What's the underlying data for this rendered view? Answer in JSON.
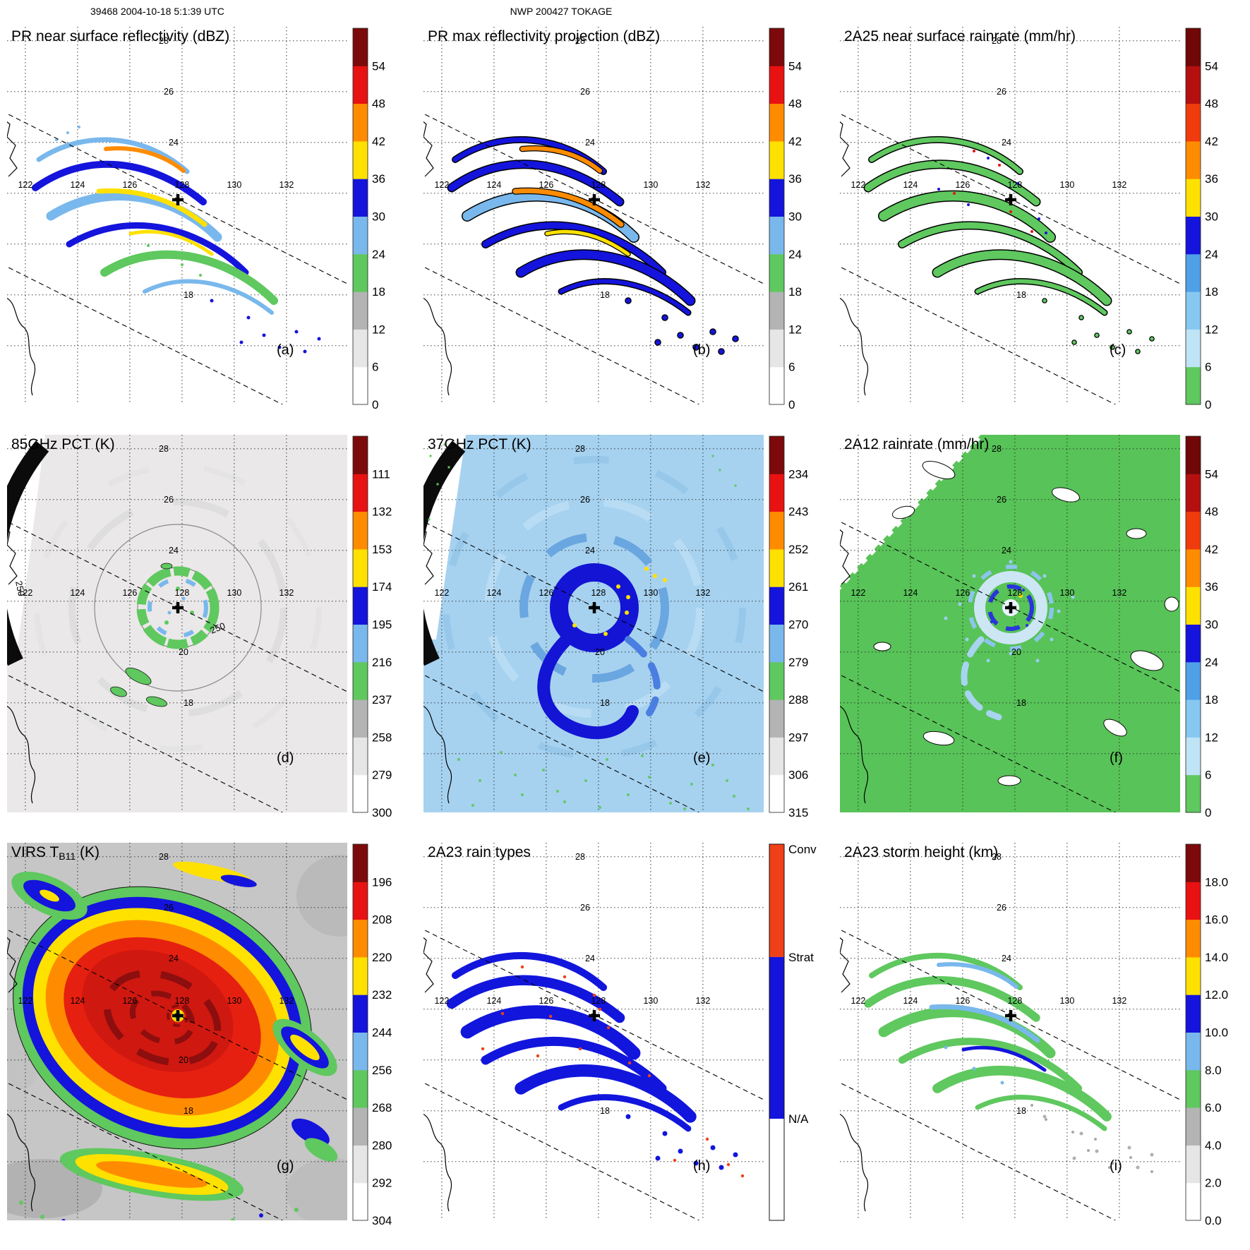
{
  "header": {
    "left": "39468 2004-10-18 5:1:39 UTC",
    "center": "NWP 200427 TOKAGE"
  },
  "axes": {
    "lon_labels": [
      "122",
      "124",
      "126",
      "128",
      "130",
      "132"
    ],
    "lon_values": [
      122,
      124,
      126,
      128,
      130,
      132
    ],
    "lat_labels": [
      "28",
      "26",
      "24",
      "20",
      "18"
    ],
    "lat_values": [
      28,
      26,
      24,
      20,
      18
    ],
    "lat_gridlines": [
      28,
      26,
      24,
      22,
      20,
      18,
      16
    ]
  },
  "annotations": {
    "contour_label": "250"
  },
  "palette": {
    "white": "#ffffff",
    "light_gray": "#e6e6e6",
    "gray": "#b4b4b4",
    "green": "#5fc85f",
    "light_blue": "#79b8ec",
    "pale_blue": "#bfe4f6",
    "mid_blue": "#86c8f0",
    "steel_blue": "#50a0e8",
    "blue": "#1414dc",
    "yellow": "#ffe100",
    "orange": "#ff8c00",
    "red_orange": "#f03c0c",
    "red": "#e81212",
    "dark_red": "#7c0a0a",
    "conv_red": "#f04018",
    "strat_blue": "#1414dc",
    "band_85ghz": "#eae8e8",
    "band_37ghz": "#a6d2f0",
    "band_2a12": "#58c358",
    "band_virs": "#c6c6c6",
    "coast": "#000000"
  },
  "panels": [
    {
      "id": "a",
      "letter": "(a)",
      "title": "PR near surface reflectivity (dBZ)",
      "art": "pr_sfc",
      "colorbar": {
        "ticks": [
          "0",
          "6",
          "12",
          "18",
          "24",
          "30",
          "36",
          "42",
          "48",
          "54"
        ],
        "colors": [
          "#ffffff",
          "#e6e6e6",
          "#b4b4b4",
          "#5fc85f",
          "#79b8ec",
          "#1414dc",
          "#ffe100",
          "#ff8c00",
          "#e81212",
          "#7c0a0a"
        ]
      }
    },
    {
      "id": "b",
      "letter": "(b)",
      "title": "PR max reflectivity projection (dBZ)",
      "art": "pr_max",
      "colorbar": {
        "ticks": [
          "0",
          "6",
          "12",
          "18",
          "24",
          "30",
          "36",
          "42",
          "48",
          "54"
        ],
        "colors": [
          "#ffffff",
          "#e6e6e6",
          "#b4b4b4",
          "#5fc85f",
          "#79b8ec",
          "#1414dc",
          "#ffe100",
          "#ff8c00",
          "#e81212",
          "#7c0a0a"
        ]
      }
    },
    {
      "id": "c",
      "letter": "(c)",
      "title": "2A25 near surface rainrate (mm/hr)",
      "art": "rr_2a25",
      "colorbar": {
        "ticks": [
          "0",
          "6",
          "12",
          "18",
          "24",
          "30",
          "36",
          "42",
          "48",
          "54"
        ],
        "colors": [
          "#5fc85f",
          "#bfe4f6",
          "#86c8f0",
          "#50a0e8",
          "#1414dc",
          "#ffe100",
          "#ff8c00",
          "#f03c0c",
          "#b41010",
          "#700808"
        ]
      }
    },
    {
      "id": "d",
      "letter": "(d)",
      "title": "85GHz PCT (K)",
      "art": "pct85",
      "colorbar": {
        "ticks": [
          "300",
          "279",
          "258",
          "237",
          "216",
          "195",
          "174",
          "153",
          "132",
          "111"
        ],
        "colors": [
          "#ffffff",
          "#e6e6e6",
          "#b4b4b4",
          "#5fc85f",
          "#79b8ec",
          "#1414dc",
          "#ffe100",
          "#ff8c00",
          "#e81212",
          "#7c0a0a"
        ]
      }
    },
    {
      "id": "e",
      "letter": "(e)",
      "title": "37GHz PCT (K)",
      "art": "pct37",
      "colorbar": {
        "ticks": [
          "315",
          "306",
          "297",
          "288",
          "279",
          "270",
          "261",
          "252",
          "243",
          "234"
        ],
        "colors": [
          "#ffffff",
          "#e6e6e6",
          "#b4b4b4",
          "#5fc85f",
          "#79b8ec",
          "#1414dc",
          "#ffe100",
          "#ff8c00",
          "#e81212",
          "#7c0a0a"
        ]
      }
    },
    {
      "id": "f",
      "letter": "(f)",
      "title": "2A12 rainrate (mm/hr)",
      "art": "rr_2a12",
      "colorbar": {
        "ticks": [
          "0",
          "6",
          "12",
          "18",
          "24",
          "30",
          "36",
          "42",
          "48",
          "54"
        ],
        "colors": [
          "#5fc85f",
          "#bfe4f6",
          "#86c8f0",
          "#50a0e8",
          "#1414dc",
          "#ffe100",
          "#ff8c00",
          "#f03c0c",
          "#b41010",
          "#700808"
        ]
      }
    },
    {
      "id": "g",
      "letter": "(g)",
      "title": "VIRS TB11 (K)",
      "title_parts": {
        "pre": "VIRS T",
        "sub": "B11",
        "post": " (K)"
      },
      "art": "virs",
      "colorbar": {
        "ticks": [
          "304",
          "292",
          "280",
          "268",
          "256",
          "244",
          "232",
          "220",
          "208",
          "196"
        ],
        "colors": [
          "#ffffff",
          "#e6e6e6",
          "#b4b4b4",
          "#5fc85f",
          "#79b8ec",
          "#1414dc",
          "#ffe100",
          "#ff8c00",
          "#e81212",
          "#7c0a0a"
        ]
      }
    },
    {
      "id": "h",
      "letter": "(h)",
      "title": "2A23 rain types",
      "art": "raintype",
      "colorbar": {
        "type": "categorical",
        "labels": [
          "Conv",
          "Strat",
          "N/A"
        ],
        "colors": [
          "#f04018",
          "#1414dc",
          "#ffffff"
        ],
        "fractions": [
          0,
          0.3,
          0.73
        ]
      }
    },
    {
      "id": "i",
      "letter": "(i)",
      "title": "2A23 storm height (km)",
      "art": "stormht",
      "colorbar": {
        "ticks": [
          "0.0",
          "2.0",
          "4.0",
          "6.0",
          "8.0",
          "10.0",
          "12.0",
          "14.0",
          "16.0",
          "18.0"
        ],
        "colors": [
          "#ffffff",
          "#e6e6e6",
          "#b4b4b4",
          "#5fc85f",
          "#79b8ec",
          "#1414dc",
          "#ffe100",
          "#ff8c00",
          "#e81212",
          "#7c0a0a"
        ]
      }
    }
  ],
  "chart_data": [
    {
      "panel": "a",
      "type": "heatmap",
      "title": "PR near surface reflectivity",
      "units": "dBZ",
      "colorbar_ticks": [
        0,
        6,
        12,
        18,
        24,
        30,
        36,
        42,
        48,
        54
      ],
      "lon_ticks": [
        122,
        124,
        126,
        128,
        130,
        132
      ],
      "lat_ticks": [
        18,
        20,
        24,
        26,
        28
      ],
      "extent": {
        "lon": [
          121.3,
          134.3
        ],
        "lat": [
          13.7,
          28.5
        ]
      },
      "features": "Narrow TRMM PR swath running NW-SE; spiral rainbands northwest of the storm center, mostly 18-42 dBZ, scattered weak echoes southeast"
    },
    {
      "panel": "b",
      "type": "heatmap",
      "title": "PR max reflectivity projection",
      "units": "dBZ",
      "colorbar_ticks": [
        0,
        6,
        12,
        18,
        24,
        30,
        36,
        42,
        48,
        54
      ],
      "features": "Same swath as (a) with outlined cells; broader 30-45 dBZ cores along the rainbands"
    },
    {
      "panel": "c",
      "type": "heatmap",
      "title": "2A25 near surface rainrate",
      "units": "mm/hr",
      "colorbar_ticks": [
        0,
        6,
        12,
        18,
        24,
        30,
        36,
        42,
        48,
        54
      ],
      "features": "Mostly light rain (0-6 mm/hr, green) over the rainbands with embedded moderate (blue) and isolated heavy (red) cells"
    },
    {
      "panel": "d",
      "type": "heatmap",
      "title": "85GHz PCT",
      "units": "K",
      "colorbar_ticks": [
        300,
        279,
        258,
        237,
        216,
        195,
        174,
        153,
        132,
        111
      ],
      "features": "Wide TMI swath with warm 280-300 K background; eyewall ring depressed to ~216-240 K; 250 K contours around the core; black arc of missing data at scan edge"
    },
    {
      "panel": "e",
      "type": "heatmap",
      "title": "37GHz PCT",
      "units": "K",
      "colorbar_ticks": [
        315,
        306,
        297,
        288,
        279,
        270,
        261,
        252,
        243,
        234
      ],
      "features": "Light-blue ~280 K background; dark-blue eyewall ring and spiral band ~270 K; yellow pixels ~261 K near eyewall; green speckle ~288 K near swath edges"
    },
    {
      "panel": "f",
      "type": "heatmap",
      "title": "2A12 rainrate",
      "units": "mm/hr",
      "colorbar_ticks": [
        0,
        6,
        12,
        18,
        24,
        30,
        36,
        42,
        48,
        54
      ],
      "features": "Widespread light rain (green) across the swath; ragged eye with light-blue/blue moderate-rain ring near center; dry slots as white holes"
    },
    {
      "panel": "g",
      "type": "heatmap",
      "title": "VIRS TB11",
      "units": "K",
      "colorbar_ticks": [
        304,
        292,
        280,
        268,
        256,
        244,
        232,
        220,
        208,
        196
      ],
      "features": "Large cold central dense overcast (red/dark red, <220 K) with yellow-orange anvil fringe, blue/green warmer edges, gray clear air, small warm eye at center"
    },
    {
      "panel": "h",
      "type": "categorical-map",
      "title": "2A23 rain types",
      "categories": [
        "Conv",
        "Strat",
        "N/A"
      ],
      "features": "Stratiform (blue) dominates the PR swath rainbands with scattered convective (orange-red) pixels"
    },
    {
      "panel": "i",
      "type": "heatmap",
      "title": "2A23 storm height",
      "units": "km",
      "colorbar_ticks": [
        0,
        2,
        4,
        6,
        8,
        10,
        12,
        14,
        16,
        18
      ],
      "features": "Storm heights mostly 6-8 km (green) along rainbands with 8-12 km cores (blue); shallow echoes (gray, 2-6 km) southeast"
    }
  ]
}
